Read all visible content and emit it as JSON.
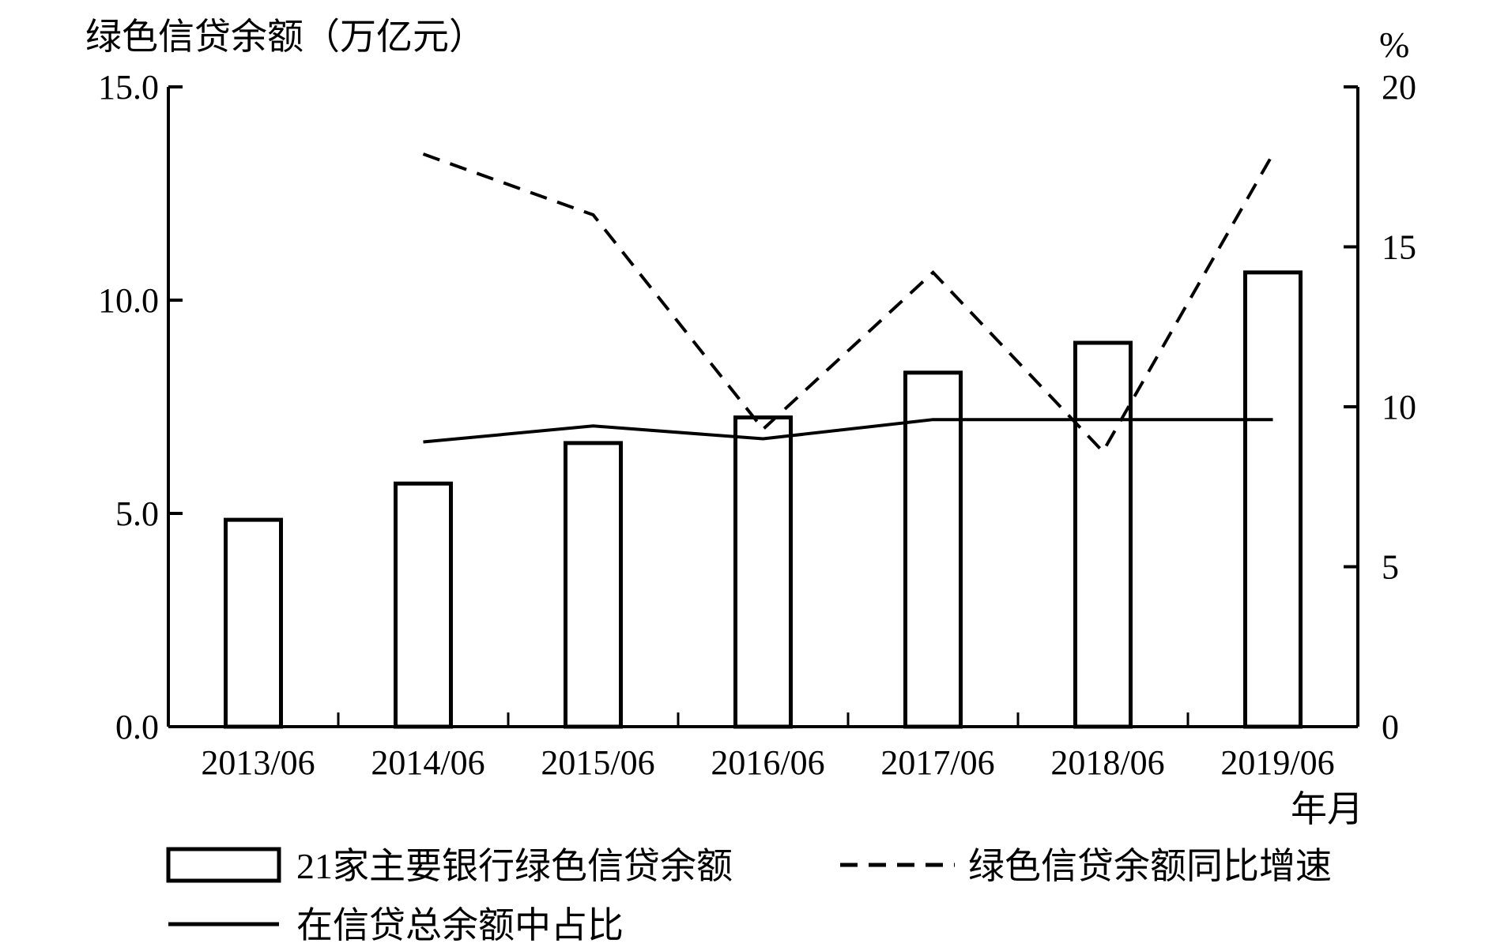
{
  "chart_data": {
    "type": "bar",
    "categories": [
      "2013/06",
      "2014/06",
      "2015/06",
      "2016/06",
      "2017/06",
      "2018/06",
      "2019/06"
    ],
    "xlabel": "年月",
    "ylabel_left": "绿色信贷余额（万亿元）",
    "ylabel_right": "%",
    "ylim_left": [
      0,
      15
    ],
    "ylim_right": [
      0,
      20
    ],
    "yticks_left": [
      "0.0",
      "5.0",
      "10.0",
      "15.0"
    ],
    "yticks_right": [
      "0",
      "5",
      "10",
      "15",
      "20"
    ],
    "grid": false,
    "legend_position": "bottom",
    "series": [
      {
        "name": "21家主要银行绿色信贷余额",
        "kind": "bar",
        "axis": "left",
        "style": "outline",
        "values": [
          4.85,
          5.7,
          6.65,
          7.25,
          8.3,
          9.0,
          10.65
        ]
      },
      {
        "name": "绿色信贷余额同比增速",
        "kind": "line",
        "axis": "right",
        "style": "dashed",
        "values": [
          null,
          17.9,
          16.0,
          9.3,
          14.2,
          8.6,
          17.9
        ]
      },
      {
        "name": "在信贷总余额中占比",
        "kind": "line",
        "axis": "right",
        "style": "solid",
        "values": [
          null,
          8.9,
          9.4,
          9.0,
          9.6,
          9.6,
          9.6
        ]
      }
    ]
  }
}
